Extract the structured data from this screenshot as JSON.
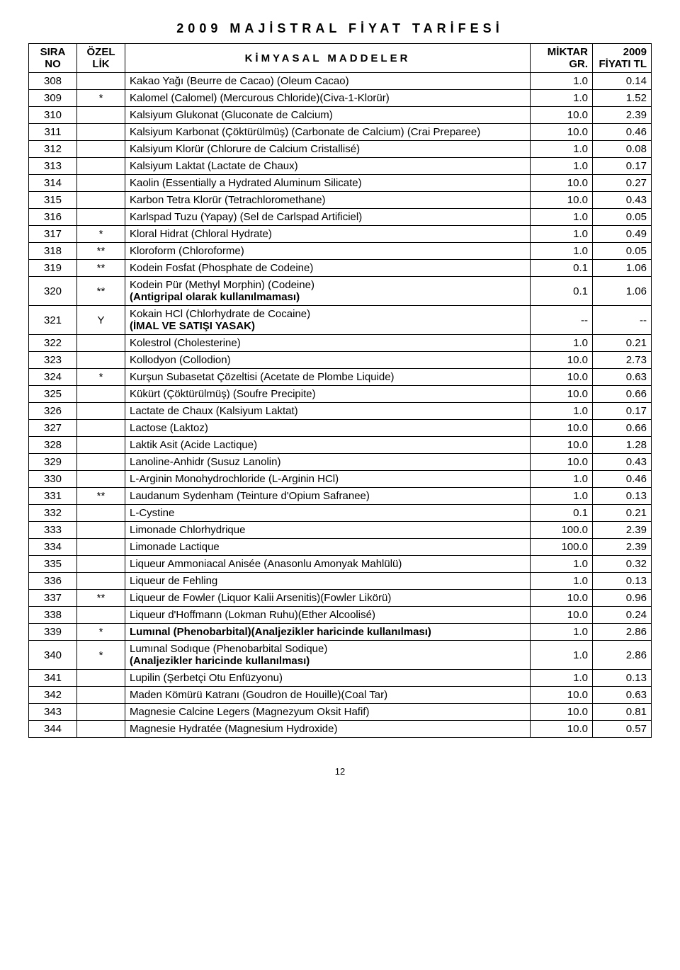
{
  "title": "2009  MAJİSTRAL  FİYAT  TARİFESİ",
  "headers": {
    "sira": "SIRA NO",
    "ozel": "ÖZEL LİK",
    "madde": "KİMYASAL  MADDELER",
    "miktar": "MİKTAR GR.",
    "fiyat": "2009 FİYATI TL"
  },
  "page_number": "12",
  "rows": [
    {
      "no": "308",
      "oz": "",
      "name": "Kakao Yağı (Beurre de Cacao) (Oleum Cacao)",
      "q": "1.0",
      "p": "0.14",
      "bold": false
    },
    {
      "no": "309",
      "oz": "*",
      "name": "Kalomel (Calomel) (Mercurous Chloride)(Civa-1-Klorür)",
      "q": "1.0",
      "p": "1.52",
      "bold": false
    },
    {
      "no": "310",
      "oz": "",
      "name": "Kalsiyum Glukonat (Gluconate de Calcium)",
      "q": "10.0",
      "p": "2.39",
      "bold": false
    },
    {
      "no": "311",
      "oz": "",
      "name": "Kalsiyum Karbonat (Çöktürülmüş) (Carbonate de Calcium) (Crai Preparee)",
      "q": "10.0",
      "p": "0.46",
      "bold": false
    },
    {
      "no": "312",
      "oz": "",
      "name": "Kalsiyum Klorür (Chlorure de Calcium Cristallisé)",
      "q": "1.0",
      "p": "0.08",
      "bold": false
    },
    {
      "no": "313",
      "oz": "",
      "name": "Kalsiyum Laktat (Lactate de Chaux)",
      "q": "1.0",
      "p": "0.17",
      "bold": false
    },
    {
      "no": "314",
      "oz": "",
      "name": "Kaolin (Essentially a Hydrated Aluminum Silicate)",
      "q": "10.0",
      "p": "0.27",
      "bold": false
    },
    {
      "no": "315",
      "oz": "",
      "name": "Karbon Tetra Klorür (Tetrachloromethane)",
      "q": "10.0",
      "p": "0.43",
      "bold": false
    },
    {
      "no": "316",
      "oz": "",
      "name": "Karlspad Tuzu (Yapay) (Sel de Carlspad Artificiel)",
      "q": "1.0",
      "p": "0.05",
      "bold": false
    },
    {
      "no": "317",
      "oz": "*",
      "name": "Kloral Hidrat (Chloral Hydrate)",
      "q": "1.0",
      "p": "0.49",
      "bold": false
    },
    {
      "no": "318",
      "oz": "**",
      "name": "Kloroform (Chloroforme)",
      "q": "1.0",
      "p": "0.05",
      "bold": false
    },
    {
      "no": "319",
      "oz": "**",
      "name": "Kodein Fosfat (Phosphate de Codeine)",
      "q": "0.1",
      "p": "1.06",
      "bold": false
    },
    {
      "no": "320",
      "oz": "**",
      "name": "Kodein Pür (Methyl Morphin) (Codeine)\n(Antigripal olarak kullanılmaması)",
      "q": "0.1",
      "p": "1.06",
      "bold": true
    },
    {
      "no": "321",
      "oz": "Y",
      "name": "Kokain HCl (Chlorhydrate de Cocaine)\n(İMAL VE SATIŞI YASAK)",
      "q": "--",
      "p": "--",
      "bold": true
    },
    {
      "no": "322",
      "oz": "",
      "name": "Kolestrol (Cholesterine)",
      "q": "1.0",
      "p": "0.21",
      "bold": false
    },
    {
      "no": "323",
      "oz": "",
      "name": "Kollodyon (Collodion)",
      "q": "10.0",
      "p": "2.73",
      "bold": false
    },
    {
      "no": "324",
      "oz": "*",
      "name": "Kurşun Subasetat Çözeltisi (Acetate de Plombe Liquide)",
      "q": "10.0",
      "p": "0.63",
      "bold": false
    },
    {
      "no": "325",
      "oz": "",
      "name": "Kükürt (Çöktürülmüş) (Soufre Precipite)",
      "q": "10.0",
      "p": "0.66",
      "bold": false
    },
    {
      "no": "326",
      "oz": "",
      "name": "Lactate de Chaux (Kalsiyum Laktat)",
      "q": "1.0",
      "p": "0.17",
      "bold": false
    },
    {
      "no": "327",
      "oz": "",
      "name": "Lactose (Laktoz)",
      "q": "10.0",
      "p": "0.66",
      "bold": false
    },
    {
      "no": "328",
      "oz": "",
      "name": "Laktik Asit (Acide Lactique)",
      "q": "10.0",
      "p": "1.28",
      "bold": false
    },
    {
      "no": "329",
      "oz": "",
      "name": "Lanoline-Anhidr (Susuz Lanolin)",
      "q": "10.0",
      "p": "0.43",
      "bold": false
    },
    {
      "no": "330",
      "oz": "",
      "name": "L-Arginin Monohydrochloride (L-Arginin HCl)",
      "q": "1.0",
      "p": "0.46",
      "bold": false
    },
    {
      "no": "331",
      "oz": "**",
      "name": "Laudanum Sydenham (Teinture d'Opium Safranee)",
      "q": "1.0",
      "p": "0.13",
      "bold": false
    },
    {
      "no": "332",
      "oz": "",
      "name": "L-Cystine",
      "q": "0.1",
      "p": "0.21",
      "bold": false
    },
    {
      "no": "333",
      "oz": "",
      "name": "Limonade Chlorhydrique",
      "q": "100.0",
      "p": "2.39",
      "bold": false
    },
    {
      "no": "334",
      "oz": "",
      "name": "Limonade Lactique",
      "q": "100.0",
      "p": "2.39",
      "bold": false
    },
    {
      "no": "335",
      "oz": "",
      "name": "Liqueur Ammoniacal Anisée (Anasonlu Amonyak Mahlülü)",
      "q": "1.0",
      "p": "0.32",
      "bold": false
    },
    {
      "no": "336",
      "oz": "",
      "name": "Liqueur de Fehling",
      "q": "1.0",
      "p": "0.13",
      "bold": false
    },
    {
      "no": "337",
      "oz": "**",
      "name": "Liqueur de Fowler (Liquor Kalii Arsenitis)(Fowler Likörü)",
      "q": "10.0",
      "p": "0.96",
      "bold": false
    },
    {
      "no": "338",
      "oz": "",
      "name": "Liqueur d'Hoffmann (Lokman Ruhu)(Ether Alcoolisé)",
      "q": "10.0",
      "p": "0.24",
      "bold": false
    },
    {
      "no": "339",
      "oz": "*",
      "name": "Lumınal (Phenobarbital)(Analjezikler haricinde kullanılması)",
      "q": "1.0",
      "p": "2.86",
      "bold": true
    },
    {
      "no": "340",
      "oz": "*",
      "name": "Lumınal Sodıque (Phenobarbital Sodique)\n(Analjezikler haricinde kullanılması)",
      "q": "1.0",
      "p": "2.86",
      "bold": true
    },
    {
      "no": "341",
      "oz": "",
      "name": "Lupilin (Şerbetçi Otu Enfüzyonu)",
      "q": "1.0",
      "p": "0.13",
      "bold": false
    },
    {
      "no": "342",
      "oz": "",
      "name": "Maden Kömürü Katranı (Goudron de Houille)(Coal Tar)",
      "q": "10.0",
      "p": "0.63",
      "bold": false
    },
    {
      "no": "343",
      "oz": "",
      "name": "Magnesie Calcine Legers (Magnezyum Oksit Hafif)",
      "q": "10.0",
      "p": "0.81",
      "bold": false
    },
    {
      "no": "344",
      "oz": "",
      "name": "Magnesie Hydratée (Magnesium Hydroxide)",
      "q": "10.0",
      "p": "0.57",
      "bold": false
    }
  ]
}
